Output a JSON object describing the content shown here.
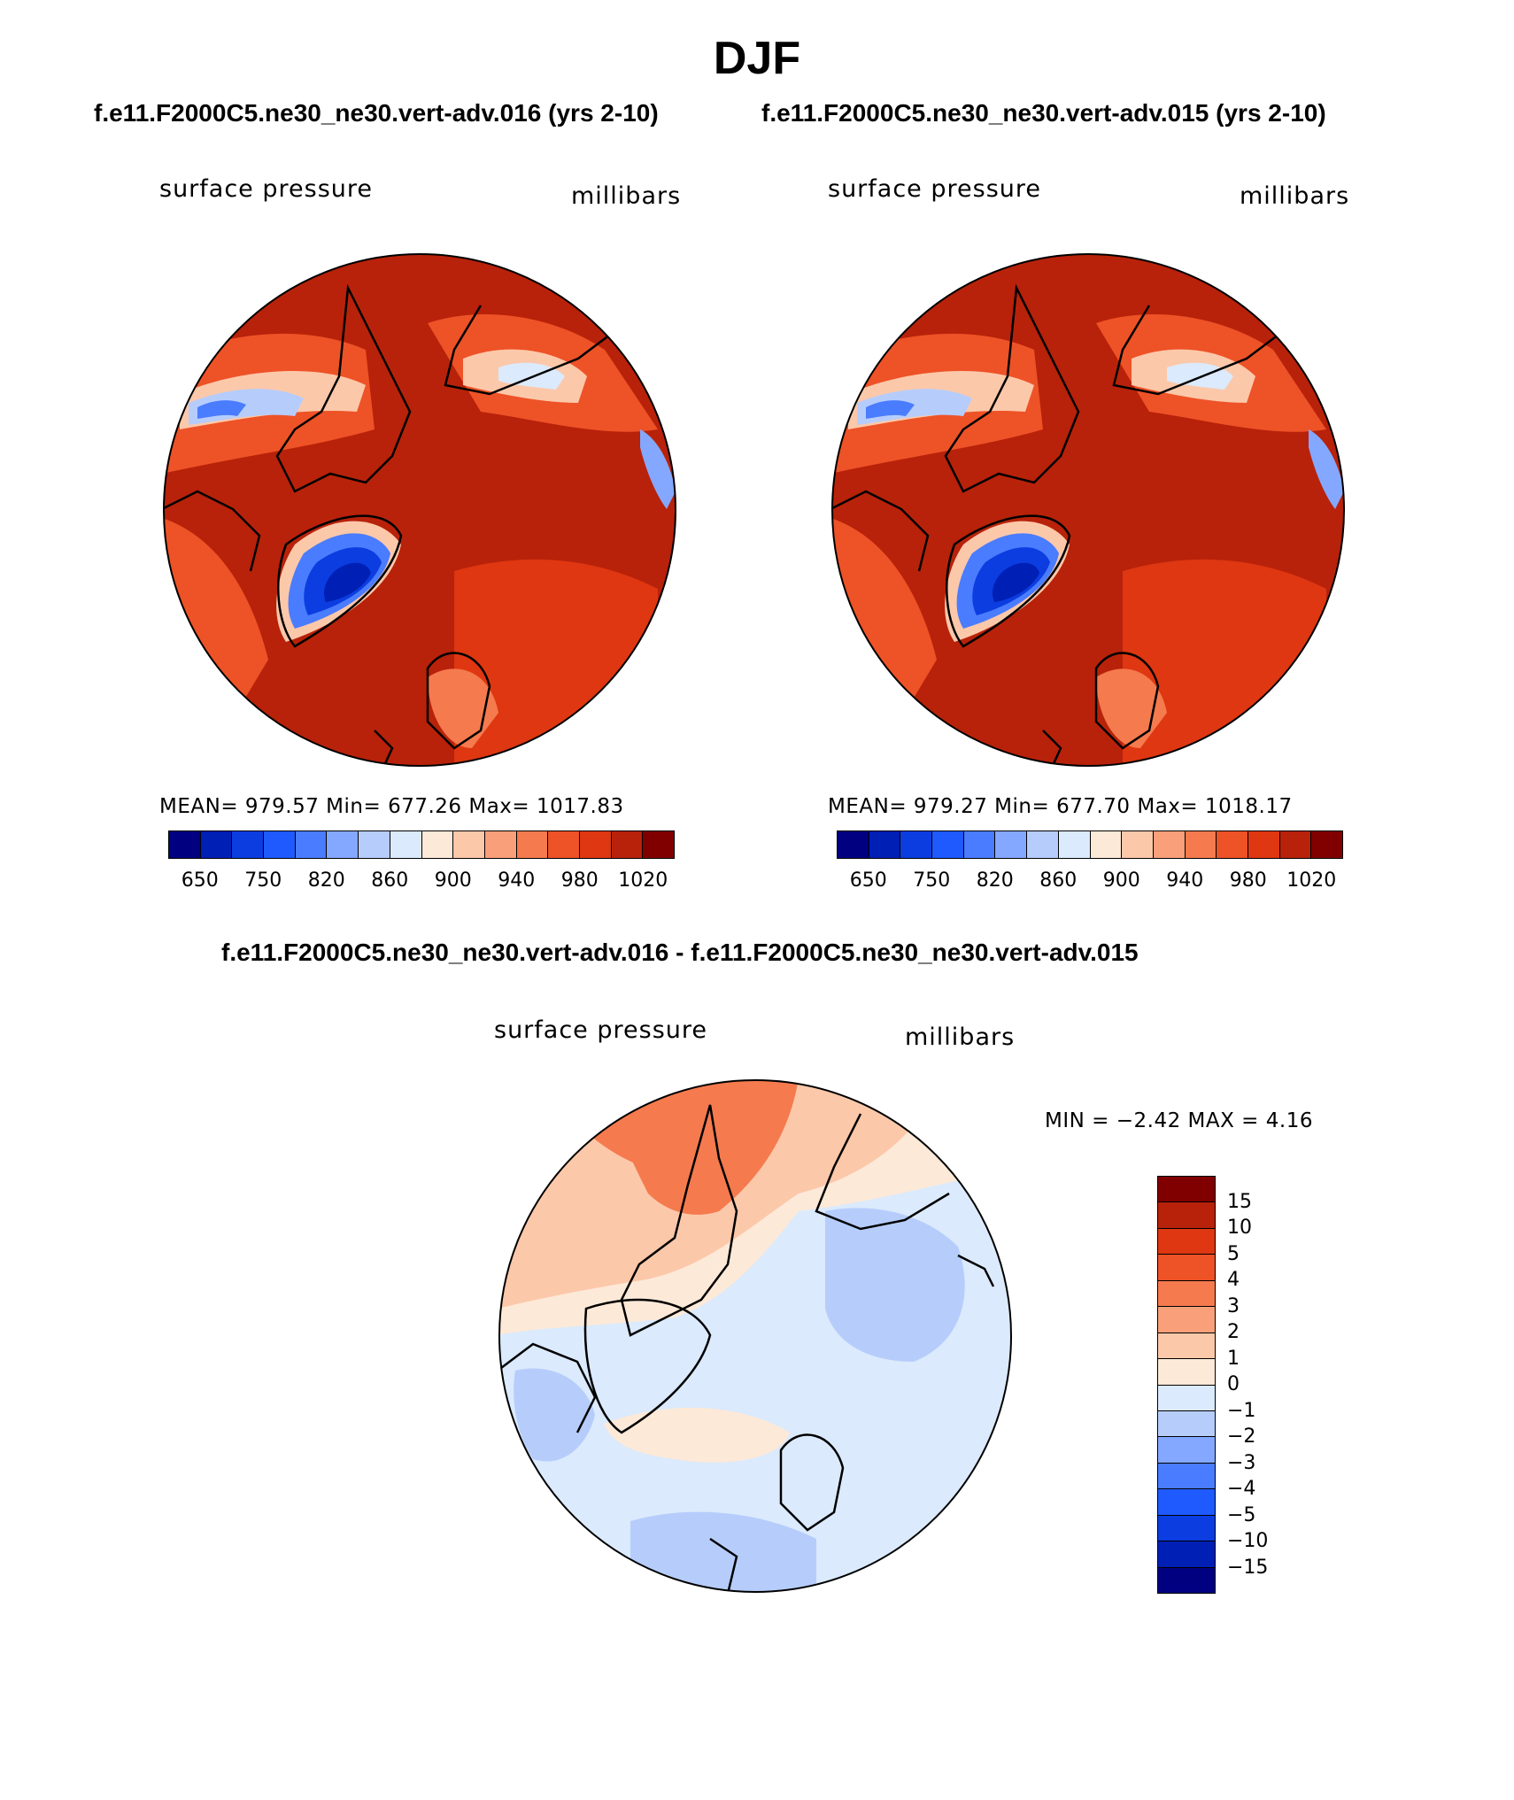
{
  "page": {
    "title": "DJF"
  },
  "panels": [
    {
      "case_title": "f.e11.F2000C5.ne30_ne30.vert-adv.016 (yrs 2-10)",
      "variable": "surface pressure",
      "units": "millibars",
      "stats": "MEAN= 979.57   Min= 677.26   Max= 1017.83"
    },
    {
      "case_title": "f.e11.F2000C5.ne30_ne30.vert-adv.015 (yrs 2-10)",
      "variable": "surface pressure",
      "units": "millibars",
      "stats": "MEAN= 979.27   Min= 677.70   Max= 1018.17"
    }
  ],
  "difference": {
    "title": "f.e11.F2000C5.ne30_ne30.vert-adv.016 - f.e11.F2000C5.ne30_ne30.vert-adv.015",
    "variable": "surface pressure",
    "units": "millibars",
    "minmax": "MIN =   −2.42 MAX =    4.16"
  },
  "colorbar_abs": {
    "labels": [
      "650",
      "750",
      "820",
      "860",
      "900",
      "940",
      "980",
      "1020"
    ],
    "colors": [
      "#000080",
      "#001fb4",
      "#0b3de0",
      "#1f5aff",
      "#4a7cff",
      "#84a8ff",
      "#b6cdfc",
      "#dbeafc",
      "#fde9d8",
      "#fcc8aa",
      "#f9a07a",
      "#f57a4e",
      "#ee5227",
      "#de3711",
      "#b8220a",
      "#800000"
    ]
  },
  "colorbar_diff": {
    "labels": [
      "15",
      "10",
      "5",
      "4",
      "3",
      "2",
      "1",
      "0",
      "−1",
      "−2",
      "−3",
      "−4",
      "−5",
      "−10",
      "−15"
    ],
    "colors": [
      "#800000",
      "#b8220a",
      "#de3711",
      "#ee5227",
      "#f57a4e",
      "#f9a07a",
      "#fcc8aa",
      "#fde9d8",
      "#dbeafc",
      "#b6cdfc",
      "#84a8ff",
      "#4a7cff",
      "#1f5aff",
      "#0b3de0",
      "#001fb4",
      "#000080"
    ]
  }
}
